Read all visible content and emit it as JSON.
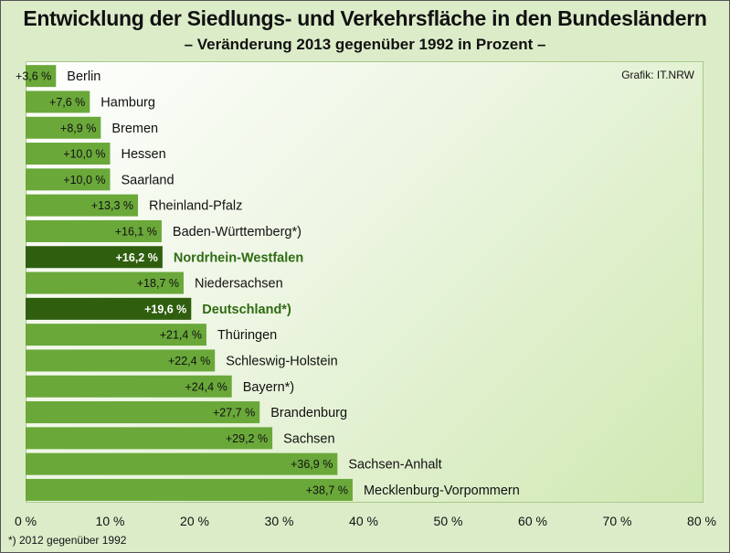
{
  "title": "Entwicklung der Siedlungs- und Verkehrsfläche in den Bundesländern",
  "subtitle": "– Veränderung 2013  gegenüber 1992 in Prozent –",
  "credit": "Grafik: IT.NRW",
  "footnote": "*) 2012 gegenüber 1992",
  "colors": {
    "bar": "#6aa83a",
    "highlight": "#2f5e0f",
    "highlight_label": "#2e6b12",
    "plot_bg_light": "#ffffff",
    "plot_bg_dark": "#cfe8b2"
  },
  "chart_data": {
    "type": "bar",
    "orientation": "horizontal",
    "categories": [
      "Berlin",
      "Hamburg",
      "Bremen",
      "Hessen",
      "Saarland",
      "Rheinland-Pfalz",
      "Baden-Württemberg*)",
      "Nordrhein-Westfalen",
      "Niedersachsen",
      "Deutschland*)",
      "Thüringen",
      "Schleswig-Holstein",
      "Bayern*)",
      "Brandenburg",
      "Sachsen",
      "Sachsen-Anhalt",
      "Mecklenburg-Vorpommern"
    ],
    "values": [
      3.6,
      7.6,
      8.9,
      10.0,
      10.0,
      13.3,
      16.1,
      16.2,
      18.7,
      19.6,
      21.4,
      22.4,
      24.4,
      27.7,
      29.2,
      36.9,
      38.7
    ],
    "value_labels": [
      "+3,6 %",
      "+7,6 %",
      "+8,9 %",
      "+10,0 %",
      "+10,0 %",
      "+13,3 %",
      "+16,1 %",
      "+16,2 %",
      "+18,7 %",
      "+19,6 %",
      "+21,4 %",
      "+22,4 %",
      "+24,4 %",
      "+27,7 %",
      "+29,2 %",
      "+36,9 %",
      "+38,7 %"
    ],
    "highlighted": [
      "Nordrhein-Westfalen",
      "Deutschland*)"
    ],
    "xlim": [
      0,
      80
    ],
    "xticks": [
      0,
      10,
      20,
      30,
      40,
      50,
      60,
      70,
      80
    ],
    "xtick_labels": [
      "0 %",
      "10 %",
      "20 %",
      "30 %",
      "40 %",
      "50 %",
      "60 %",
      "70 %",
      "80 %"
    ],
    "grid": false
  }
}
